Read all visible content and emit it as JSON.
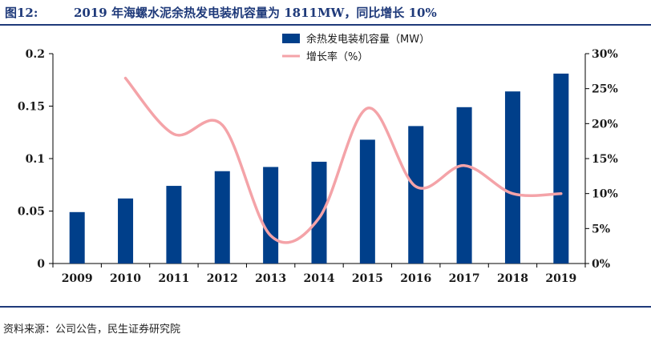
{
  "figure": {
    "label": "图12:",
    "title": "2019 年海螺水泥余热发电装机容量为 1811MW，同比增长 10%",
    "source": "资料来源：公司公告，民生证券研究院"
  },
  "colors": {
    "bar": "#003f8a",
    "line": "#f4a3a8",
    "title": "#1f3a7a"
  },
  "chart_data": {
    "type": "bar",
    "categories": [
      "2009",
      "2010",
      "2011",
      "2012",
      "2013",
      "2014",
      "2015",
      "2016",
      "2017",
      "2018",
      "2019"
    ],
    "series": [
      {
        "name": "余热发电装机容量（MW）",
        "type": "bar",
        "axis": "left",
        "values": [
          0.049,
          0.062,
          0.074,
          0.088,
          0.092,
          0.097,
          0.118,
          0.131,
          0.149,
          0.164,
          0.181
        ]
      },
      {
        "name": "增长率（%）",
        "type": "line",
        "axis": "right",
        "values": [
          null,
          0.265,
          0.185,
          0.198,
          0.04,
          0.065,
          0.222,
          0.11,
          0.14,
          0.1,
          0.1
        ]
      }
    ],
    "y_left": {
      "min": 0,
      "max": 0.2,
      "ticks": [
        "0",
        "0.05",
        "0.1",
        "0.15",
        "0.2"
      ],
      "tick_values": [
        0,
        0.05,
        0.1,
        0.15,
        0.2
      ]
    },
    "y_right": {
      "min": 0,
      "max": 0.3,
      "ticks": [
        "0%",
        "5%",
        "10%",
        "15%",
        "20%",
        "25%",
        "30%"
      ],
      "tick_values": [
        0,
        0.05,
        0.1,
        0.15,
        0.2,
        0.25,
        0.3
      ]
    },
    "grid": false,
    "legend_position": "top-center"
  }
}
